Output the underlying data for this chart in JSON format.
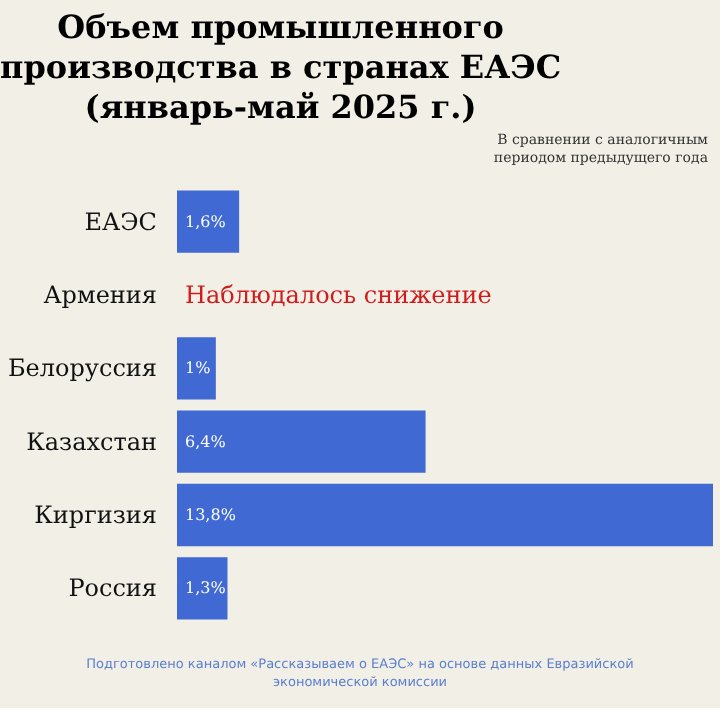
{
  "chart_data": {
    "type": "bar",
    "orientation": "horizontal",
    "title": "Объем промышленного производства в странах ЕАЭС (январь-май 2025 г.)",
    "subtitle": "В сравнении с аналогичным периодом предыдущего года",
    "categories": [
      "ЕАЭС",
      "Армения",
      "Белоруссия",
      "Казахстан",
      "Киргизия",
      "Россия"
    ],
    "values": [
      1.6,
      null,
      1,
      6.4,
      13.8,
      1.3
    ],
    "value_labels": [
      "1,6%",
      null,
      "1%",
      "6,4%",
      "13,8%",
      "1,3%"
    ],
    "color": "#4169d4",
    "annotations": [
      "Наблюдалось снижение",
      "Подготовлено каналом «Рассказываем о ЕАЭС» на основе данных Евразийской экономической комиссии"
    ]
  }
}
